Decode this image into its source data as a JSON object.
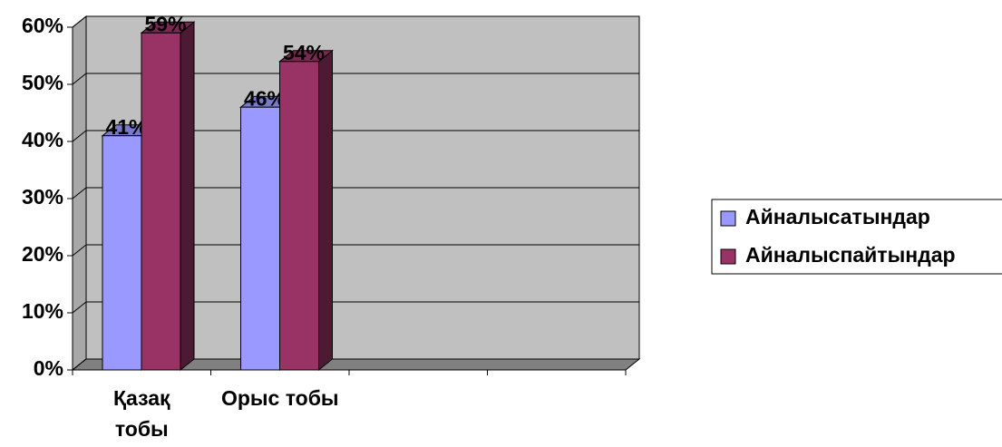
{
  "chart_data": {
    "type": "bar3d",
    "categories": [
      "Қазақ тобы",
      "Орыс тобы",
      null,
      null
    ],
    "series": [
      {
        "name": "Айналысатындар",
        "color": "#9999ff",
        "values": [
          41,
          46,
          null,
          null
        ],
        "value_labels": [
          "41%",
          "46%",
          null,
          null
        ]
      },
      {
        "name": "Айналыспайтындар",
        "color": "#993366",
        "values": [
          59,
          54,
          null,
          null
        ],
        "value_labels": [
          "59%",
          "54%",
          null,
          null
        ]
      }
    ],
    "ylim": [
      0,
      60
    ],
    "yticks": [
      {
        "value": 0,
        "label": "0%"
      },
      {
        "value": 10,
        "label": "10%"
      },
      {
        "value": 20,
        "label": "20%"
      },
      {
        "value": 30,
        "label": "30%"
      },
      {
        "value": 40,
        "label": "40%"
      },
      {
        "value": 50,
        "label": "50%"
      },
      {
        "value": 60,
        "label": "60%"
      }
    ],
    "grid": true,
    "legend": "right"
  }
}
